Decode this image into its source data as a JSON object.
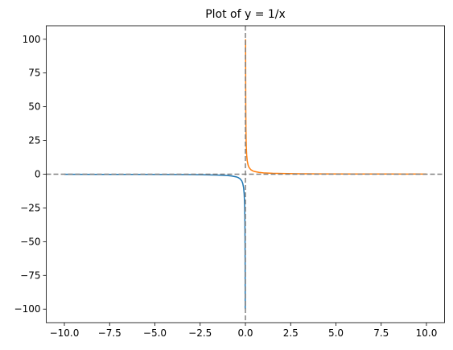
{
  "chart_data": {
    "type": "line",
    "title": "Plot of y = 1/x",
    "series": [
      {
        "color": "#1f77b4",
        "x": [
          -10,
          -8,
          -6,
          -4,
          -3,
          -2,
          -1.5,
          -1,
          -0.75,
          -0.5,
          -0.4,
          -0.3,
          -0.2,
          -0.15,
          -0.1,
          -0.07,
          -0.05,
          -0.04,
          -0.03,
          -0.02,
          -0.015,
          -0.01
        ],
        "values": [
          -0.1,
          -0.125,
          -0.1667,
          -0.25,
          -0.3333,
          -0.5,
          -0.6667,
          -1,
          -1.3333,
          -2,
          -2.5,
          -3.3333,
          -5,
          -6.6667,
          -10,
          -14.2857,
          -20,
          -25,
          -33.3333,
          -50,
          -66.6667,
          -100
        ]
      },
      {
        "color": "#ff7f0e",
        "x": [
          0.01,
          0.015,
          0.02,
          0.03,
          0.04,
          0.05,
          0.07,
          0.1,
          0.15,
          0.2,
          0.3,
          0.4,
          0.5,
          0.75,
          1,
          1.5,
          2,
          3,
          4,
          6,
          8,
          10
        ],
        "values": [
          100,
          66.6667,
          50,
          33.3333,
          25,
          20,
          14.2857,
          10,
          6.6667,
          5,
          3.3333,
          2.5,
          2,
          1.3333,
          1,
          0.6667,
          0.5,
          0.3333,
          0.25,
          0.1667,
          0.125,
          0.1
        ]
      }
    ],
    "xlim": [
      -11,
      11
    ],
    "ylim": [
      -110,
      110
    ],
    "xticks": [
      {
        "value": -10,
        "label": "−10.0"
      },
      {
        "value": -7.5,
        "label": "−7.5"
      },
      {
        "value": -5,
        "label": "−5.0"
      },
      {
        "value": -2.5,
        "label": "−2.5"
      },
      {
        "value": 0,
        "label": "0.0"
      },
      {
        "value": 2.5,
        "label": "2.5"
      },
      {
        "value": 5,
        "label": "5.0"
      },
      {
        "value": 7.5,
        "label": "7.5"
      },
      {
        "value": 10,
        "label": "10.0"
      }
    ],
    "yticks": [
      {
        "value": -100,
        "label": "−100"
      },
      {
        "value": -75,
        "label": "−75"
      },
      {
        "value": -50,
        "label": "−50"
      },
      {
        "value": -25,
        "label": "−25"
      },
      0,
      25,
      50,
      75,
      100
    ],
    "hlines": [
      0
    ],
    "vlines": [
      0
    ],
    "ref_line_color": "#808080",
    "grid": false
  }
}
